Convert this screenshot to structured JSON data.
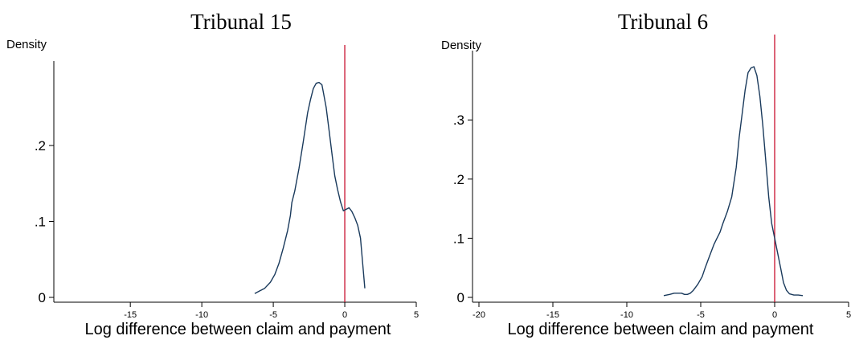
{
  "chart_data": [
    {
      "type": "line",
      "title": "Tribunal 15",
      "ylabel": "Density",
      "xlabel": "Log difference between claim and payment",
      "xlim": [
        -19.9,
        5
      ],
      "ylim": [
        0,
        0.29
      ],
      "xticks": [
        -15,
        -10,
        -5,
        0,
        5
      ],
      "xtick_labels": [
        "-15",
        "-10",
        "-5",
        "0",
        "5"
      ],
      "yticks": [
        0,
        0.1,
        0.2
      ],
      "ytick_labels": [
        "0",
        ".1",
        ".2"
      ],
      "vline": 0,
      "line_color": "#1a3a5c",
      "vline_color": "#c8102e",
      "series": [
        {
          "x": [
            -6.3,
            -6.0,
            -5.6,
            -5.2,
            -4.9,
            -4.6,
            -4.3,
            -4.0,
            -3.8,
            -3.7,
            -3.5,
            -3.2,
            -2.9,
            -2.6,
            -2.4,
            -2.2,
            -2.0,
            -1.8,
            -1.6,
            -1.5,
            -1.3,
            -1.1,
            -0.9,
            -0.7,
            -0.5,
            -0.3,
            -0.1,
            0.1,
            0.3,
            0.5,
            0.7,
            0.9,
            1.1,
            1.25,
            1.4
          ],
          "y": [
            0.005,
            0.008,
            0.012,
            0.02,
            0.03,
            0.045,
            0.065,
            0.088,
            0.108,
            0.125,
            0.14,
            0.17,
            0.205,
            0.243,
            0.26,
            0.275,
            0.282,
            0.283,
            0.28,
            0.27,
            0.25,
            0.22,
            0.19,
            0.16,
            0.142,
            0.126,
            0.114,
            0.116,
            0.118,
            0.113,
            0.105,
            0.095,
            0.078,
            0.045,
            0.012
          ]
        }
      ]
    },
    {
      "type": "line",
      "title": "Tribunal 6",
      "ylabel": "Density",
      "xlabel": "Log difference between claim and payment",
      "xlim": [
        -20,
        5
      ],
      "ylim": [
        0,
        0.39
      ],
      "xticks": [
        -20,
        -15,
        -10,
        -5,
        0,
        5
      ],
      "xtick_labels": [
        "-20",
        "-15",
        "-10",
        "-5",
        "0",
        "5"
      ],
      "yticks": [
        0,
        0.1,
        0.2,
        0.3
      ],
      "ytick_labels": [
        "0",
        ".1",
        ".2",
        ".3"
      ],
      "vline": 0,
      "line_color": "#1a3a5c",
      "vline_color": "#c8102e",
      "series": [
        {
          "x": [
            -7.5,
            -7.1,
            -6.8,
            -6.5,
            -6.3,
            -6.1,
            -5.9,
            -5.7,
            -5.5,
            -5.2,
            -4.9,
            -4.7,
            -4.4,
            -4.1,
            -3.9,
            -3.7,
            -3.5,
            -3.2,
            -2.9,
            -2.6,
            -2.4,
            -2.2,
            -2.0,
            -1.8,
            -1.6,
            -1.4,
            -1.2,
            -1.0,
            -0.8,
            -0.6,
            -0.4,
            -0.2,
            0.0,
            0.2,
            0.4,
            0.6,
            0.8,
            1.0,
            1.3,
            1.6,
            1.9
          ],
          "y": [
            0.003,
            0.005,
            0.007,
            0.007,
            0.007,
            0.005,
            0.005,
            0.007,
            0.012,
            0.022,
            0.035,
            0.05,
            0.07,
            0.09,
            0.1,
            0.11,
            0.125,
            0.145,
            0.17,
            0.22,
            0.27,
            0.31,
            0.35,
            0.38,
            0.388,
            0.39,
            0.375,
            0.34,
            0.29,
            0.23,
            0.17,
            0.125,
            0.1,
            0.075,
            0.05,
            0.025,
            0.012,
            0.006,
            0.004,
            0.004,
            0.003
          ]
        }
      ]
    }
  ]
}
